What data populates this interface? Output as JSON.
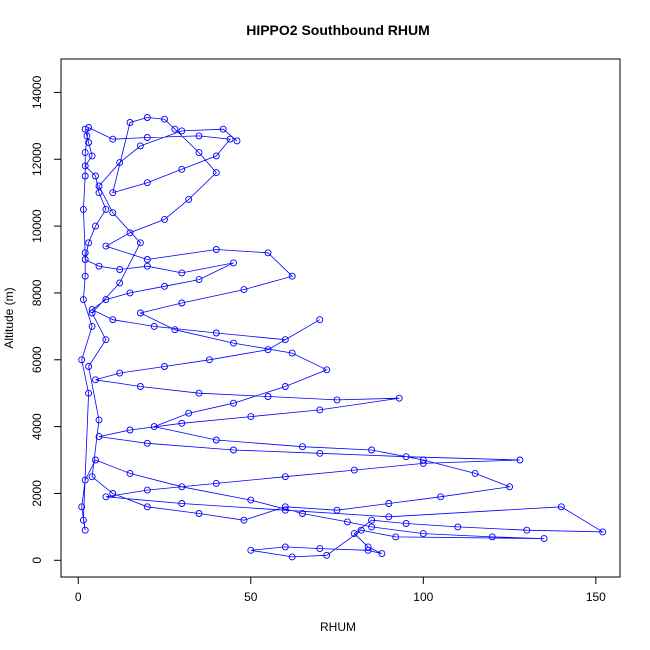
{
  "chart_data": {
    "type": "scatter",
    "title": "HIPPO2 Southbound RHUM",
    "xlabel": "RHUM",
    "ylabel": "Altitude (m)",
    "xlim": [
      -5,
      157
    ],
    "ylim": [
      -500,
      15000
    ],
    "x_ticks": [
      0,
      50,
      100,
      150
    ],
    "y_ticks": [
      0,
      2000,
      4000,
      6000,
      8000,
      10000,
      12000,
      14000
    ],
    "series": [
      {
        "color": "#0000ff",
        "marker": "open-circle",
        "connected": true,
        "points": [
          [
            2,
            12900
          ],
          [
            2.5,
            12700
          ],
          [
            3,
            12500
          ],
          [
            4,
            12100
          ],
          [
            2,
            11800
          ],
          [
            5,
            11500
          ],
          [
            6,
            11000
          ],
          [
            8,
            10500
          ],
          [
            5,
            10000
          ],
          [
            3,
            9500
          ],
          [
            2,
            9000
          ],
          [
            6,
            8800
          ],
          [
            12,
            8700
          ],
          [
            20,
            8800
          ],
          [
            30,
            8600
          ],
          [
            45,
            8900
          ],
          [
            35,
            8400
          ],
          [
            25,
            8200
          ],
          [
            15,
            8000
          ],
          [
            8,
            7800
          ],
          [
            4,
            7500
          ],
          [
            10,
            7200
          ],
          [
            22,
            7000
          ],
          [
            40,
            6800
          ],
          [
            60,
            6600
          ],
          [
            70,
            7200
          ],
          [
            55,
            6300
          ],
          [
            38,
            6000
          ],
          [
            25,
            5800
          ],
          [
            12,
            5600
          ],
          [
            5,
            5400
          ],
          [
            18,
            5200
          ],
          [
            35,
            5000
          ],
          [
            55,
            4900
          ],
          [
            75,
            4800
          ],
          [
            93,
            4850
          ],
          [
            70,
            4500
          ],
          [
            50,
            4300
          ],
          [
            30,
            4100
          ],
          [
            15,
            3900
          ],
          [
            6,
            3700
          ],
          [
            20,
            3500
          ],
          [
            45,
            3300
          ],
          [
            70,
            3200
          ],
          [
            95,
            3100
          ],
          [
            128,
            3000
          ],
          [
            100,
            2900
          ],
          [
            80,
            2700
          ],
          [
            60,
            2500
          ],
          [
            40,
            2300
          ],
          [
            20,
            2100
          ],
          [
            8,
            1900
          ],
          [
            30,
            1700
          ],
          [
            60,
            1500
          ],
          [
            90,
            1300
          ],
          [
            140,
            1600
          ],
          [
            152,
            850
          ],
          [
            130,
            900
          ],
          [
            110,
            1000
          ],
          [
            95,
            1100
          ],
          [
            85,
            1200
          ],
          [
            80,
            800
          ],
          [
            84,
            400
          ],
          [
            88,
            200
          ],
          [
            84,
            300
          ],
          [
            70,
            350
          ],
          [
            60,
            400
          ],
          [
            50,
            300
          ],
          [
            62,
            100
          ],
          [
            72,
            150
          ],
          [
            82,
            900
          ],
          [
            92,
            700
          ],
          [
            135,
            650
          ],
          [
            120,
            700
          ],
          [
            100,
            800
          ],
          [
            85,
            1000
          ],
          [
            78,
            1150
          ],
          [
            65,
            1400
          ],
          [
            50,
            1800
          ],
          [
            30,
            2200
          ],
          [
            15,
            2600
          ],
          [
            5,
            3000
          ],
          [
            2,
            2400
          ],
          [
            1,
            1600
          ],
          [
            2,
            900
          ],
          [
            1.5,
            1200
          ],
          [
            3,
            5000
          ],
          [
            1,
            6000
          ],
          [
            4,
            7000
          ],
          [
            1.5,
            7800
          ],
          [
            2,
            8500
          ],
          [
            2,
            9200
          ],
          [
            1.5,
            10500
          ],
          [
            2,
            11500
          ],
          [
            2,
            12200
          ],
          [
            3,
            12950
          ],
          [
            10,
            12600
          ],
          [
            20,
            12650
          ],
          [
            35,
            12700
          ],
          [
            44,
            12600
          ],
          [
            40,
            12100
          ],
          [
            30,
            11700
          ],
          [
            20,
            11300
          ],
          [
            10,
            11000
          ],
          [
            15,
            13100
          ],
          [
            20,
            13250
          ],
          [
            25,
            13200
          ],
          [
            28,
            12900
          ],
          [
            35,
            12200
          ],
          [
            40,
            11600
          ],
          [
            32,
            10800
          ],
          [
            25,
            10200
          ],
          [
            15,
            9800
          ],
          [
            8,
            9400
          ],
          [
            20,
            9000
          ],
          [
            40,
            9300
          ],
          [
            55,
            9200
          ],
          [
            62,
            8500
          ],
          [
            48,
            8100
          ],
          [
            30,
            7700
          ],
          [
            18,
            7400
          ],
          [
            28,
            6900
          ],
          [
            45,
            6500
          ],
          [
            62,
            6200
          ],
          [
            72,
            5700
          ],
          [
            60,
            5200
          ],
          [
            45,
            4700
          ],
          [
            32,
            4400
          ],
          [
            22,
            4000
          ],
          [
            40,
            3600
          ],
          [
            65,
            3400
          ],
          [
            85,
            3300
          ],
          [
            100,
            3000
          ],
          [
            115,
            2600
          ],
          [
            125,
            2200
          ],
          [
            105,
            1900
          ],
          [
            90,
            1700
          ],
          [
            75,
            1500
          ],
          [
            60,
            1600
          ],
          [
            48,
            1200
          ],
          [
            35,
            1400
          ],
          [
            20,
            1600
          ],
          [
            10,
            2000
          ],
          [
            4,
            2500
          ],
          [
            6,
            4200
          ],
          [
            3,
            5800
          ],
          [
            8,
            6600
          ],
          [
            4,
            7400
          ],
          [
            12,
            8300
          ],
          [
            18,
            9500
          ],
          [
            10,
            10400
          ],
          [
            6,
            11200
          ],
          [
            12,
            11900
          ],
          [
            18,
            12400
          ],
          [
            30,
            12850
          ],
          [
            42,
            12900
          ],
          [
            46,
            12550
          ]
        ]
      }
    ]
  }
}
